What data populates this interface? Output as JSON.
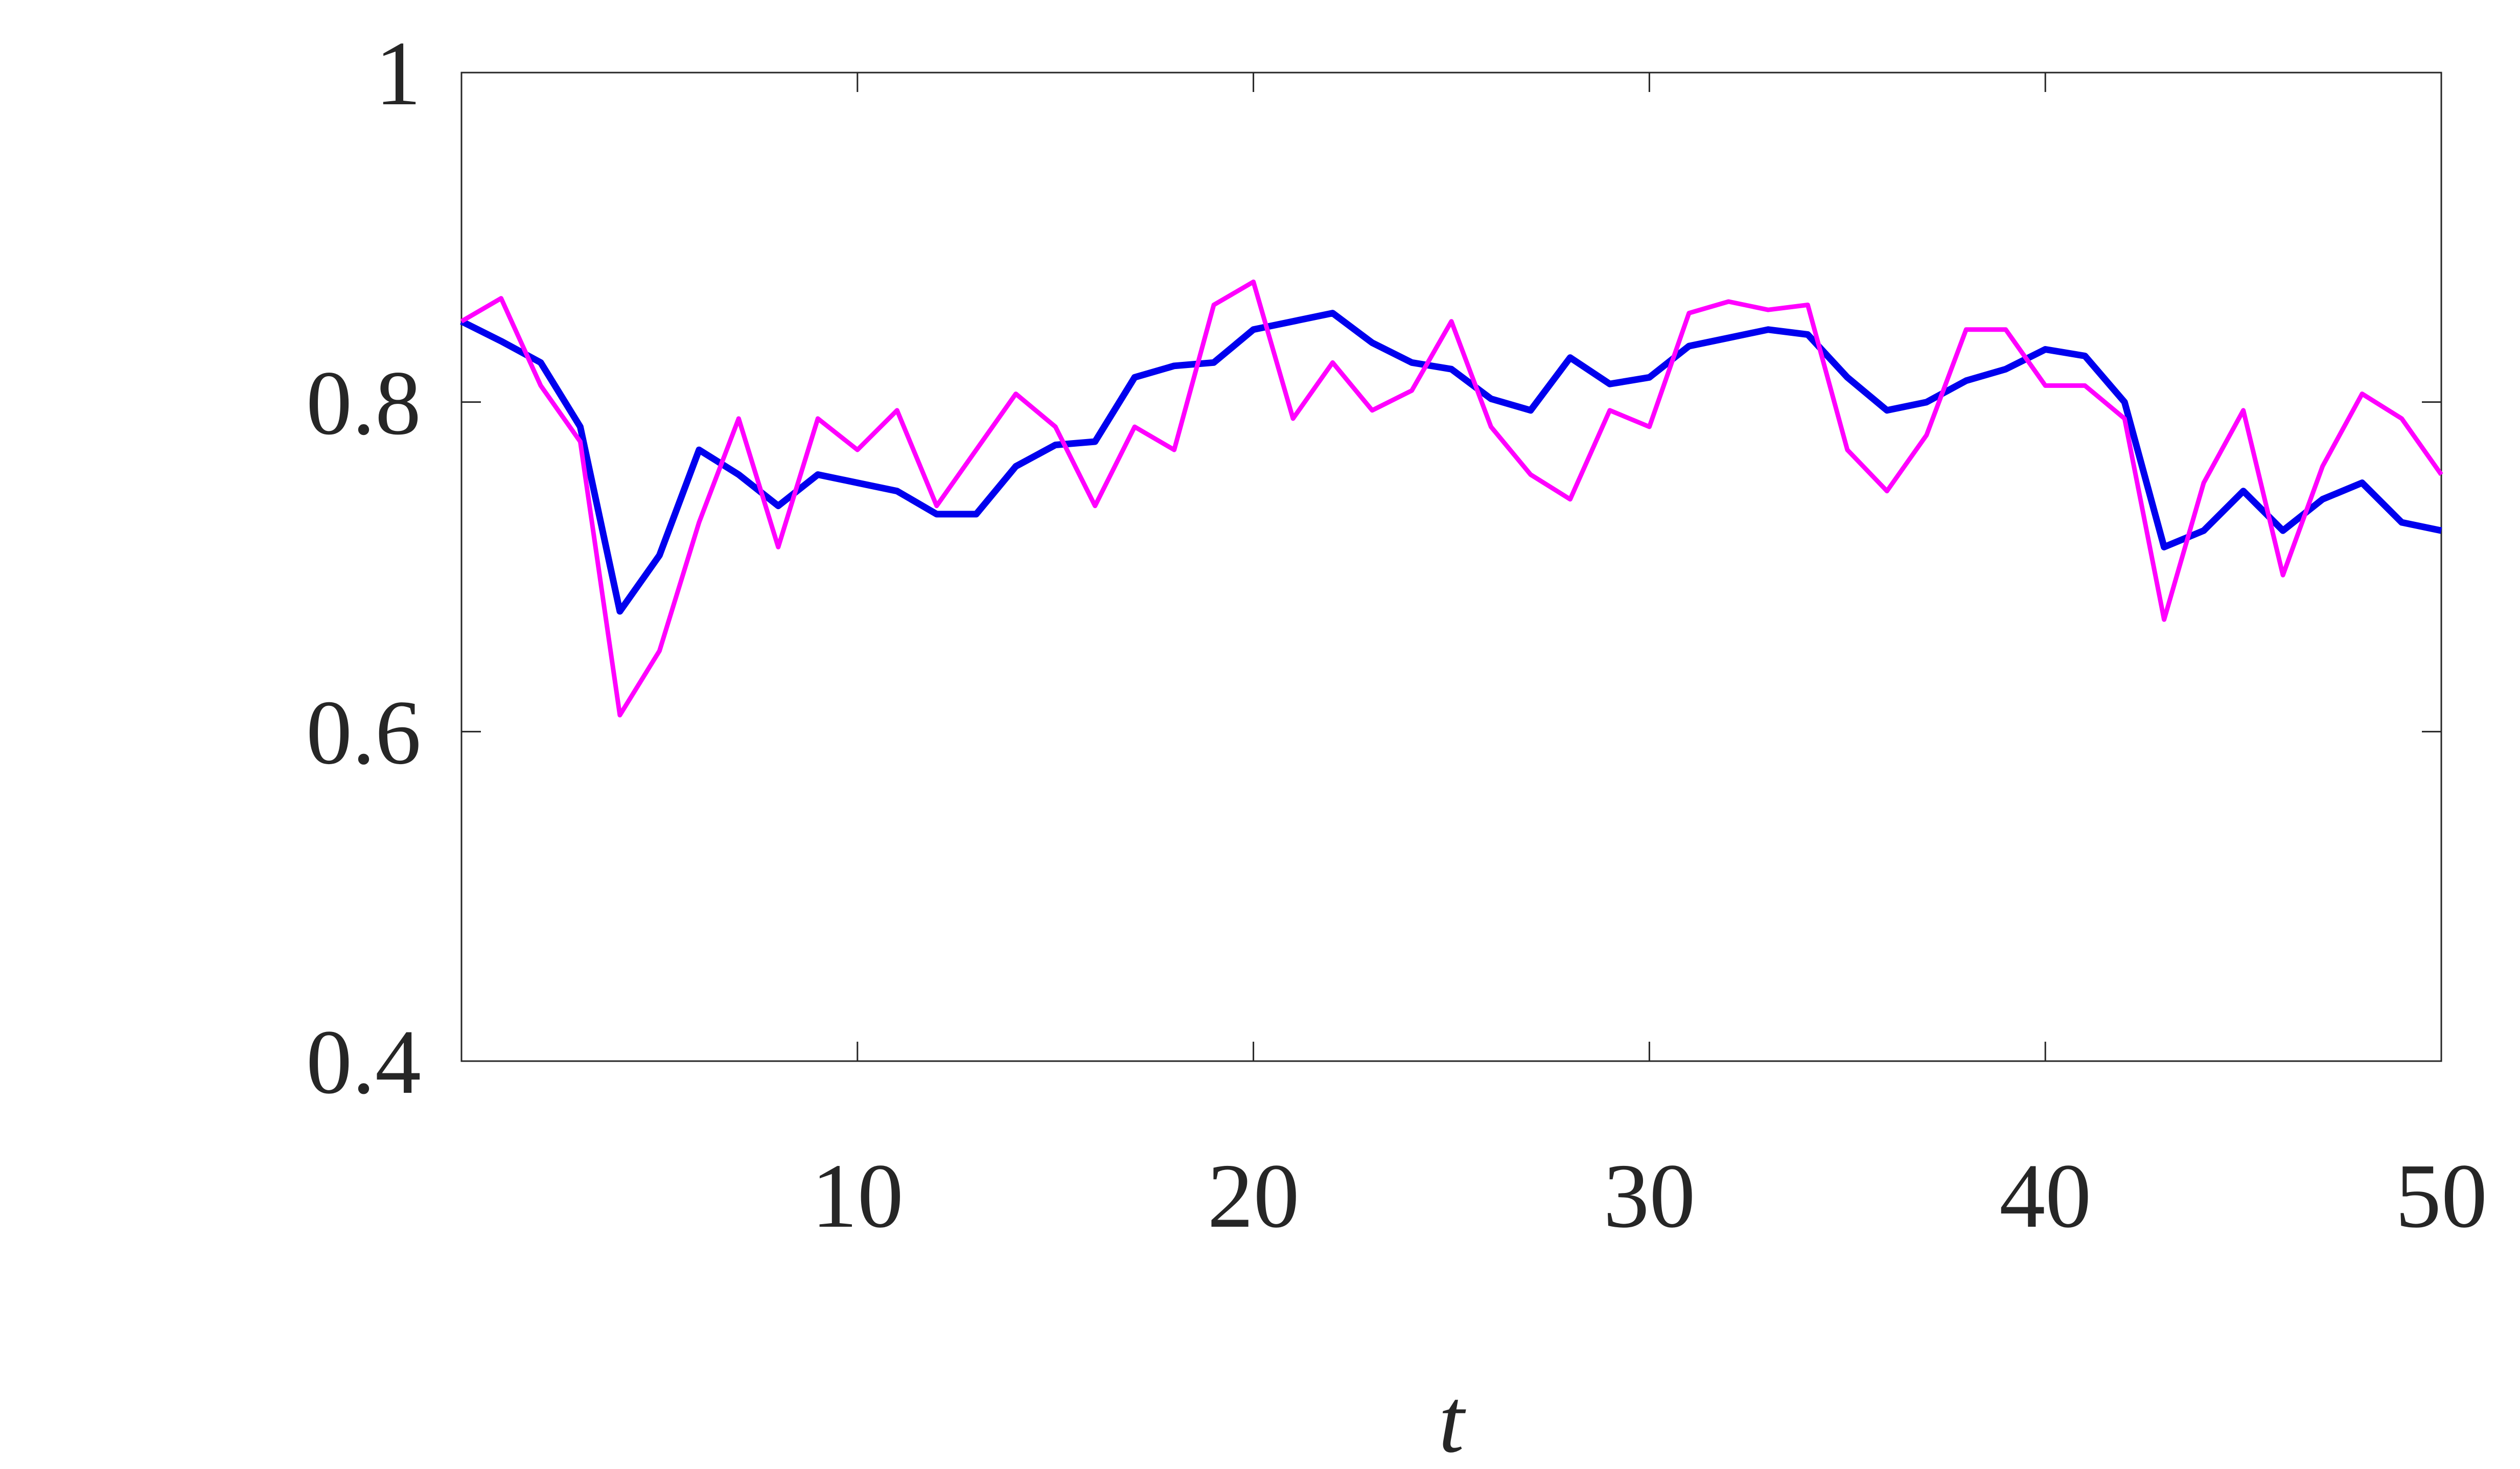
{
  "chart_data": {
    "type": "line",
    "xlabel": "t",
    "x": [
      0,
      1,
      2,
      3,
      4,
      5,
      6,
      7,
      8,
      9,
      10,
      11,
      12,
      13,
      14,
      15,
      16,
      17,
      18,
      19,
      20,
      21,
      22,
      23,
      24,
      25,
      26,
      27,
      28,
      29,
      30,
      31,
      32,
      33,
      34,
      35,
      36,
      37,
      38,
      39,
      40,
      41,
      42,
      43,
      44,
      45,
      46,
      47,
      48,
      49,
      50
    ],
    "series": [
      {
        "color": "#0000ee",
        "values": [
          0.849,
          0.837,
          0.824,
          0.785,
          0.673,
          0.707,
          0.771,
          0.756,
          0.737,
          0.756,
          0.751,
          0.746,
          0.732,
          0.732,
          0.761,
          0.774,
          0.776,
          0.815,
          0.822,
          0.824,
          0.844,
          0.849,
          0.854,
          0.836,
          0.824,
          0.82,
          0.802,
          0.795,
          0.827,
          0.811,
          0.815,
          0.834,
          0.839,
          0.844,
          0.841,
          0.815,
          0.795,
          0.8,
          0.813,
          0.82,
          0.832,
          0.828,
          0.8,
          0.712,
          0.722,
          0.746,
          0.722,
          0.741,
          0.751,
          0.727,
          0.722
        ]
      },
      {
        "color": "#ff00ff",
        "values": [
          0.849,
          0.863,
          0.81,
          0.776,
          0.61,
          0.649,
          0.727,
          0.79,
          0.712,
          0.79,
          0.771,
          0.795,
          0.737,
          0.771,
          0.805,
          0.785,
          0.737,
          0.785,
          0.771,
          0.859,
          0.873,
          0.79,
          0.824,
          0.795,
          0.807,
          0.849,
          0.785,
          0.756,
          0.741,
          0.795,
          0.785,
          0.854,
          0.861,
          0.856,
          0.859,
          0.771,
          0.746,
          0.78,
          0.844,
          0.844,
          0.81,
          0.81,
          0.79,
          0.668,
          0.751,
          0.795,
          0.695,
          0.761,
          0.805,
          0.79,
          0.756
        ]
      }
    ],
    "xlim": [
      0,
      50
    ],
    "xticks": [
      10,
      20,
      30,
      40,
      50
    ],
    "ylim": [
      0.4,
      1
    ],
    "yticks": [
      0.4,
      0.6,
      0.8,
      1
    ],
    "grid": false
  }
}
